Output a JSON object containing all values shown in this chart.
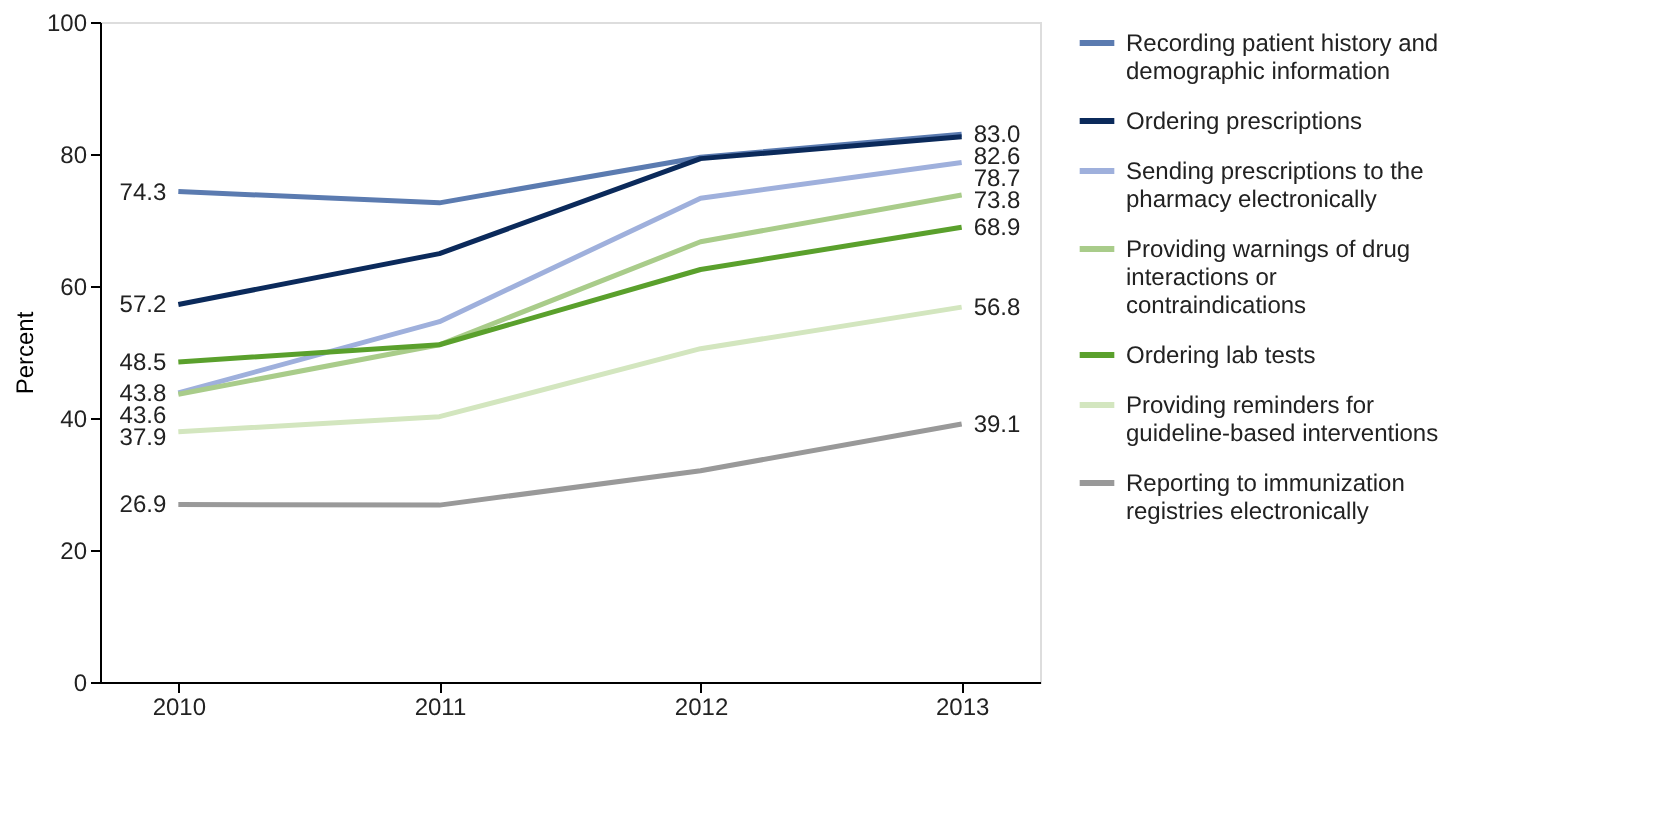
{
  "chart_data": {
    "type": "line",
    "ylabel": "Percent",
    "categories": [
      "2010",
      "2011",
      "2012",
      "2013"
    ],
    "ylim": [
      0,
      100
    ],
    "yticks": [
      0,
      20,
      40,
      60,
      80,
      100
    ],
    "grid": false,
    "legend": "right",
    "marker": "none",
    "line_style": "solid",
    "series": [
      {
        "name": "Recording patient history and demographic information",
        "color": "#5b7bb0",
        "values": [
          74.3,
          72.6,
          79.5,
          83.0
        ],
        "value_labels": [
          "74.3",
          null,
          null,
          "83.0"
        ]
      },
      {
        "name": "Ordering prescriptions",
        "color": "#0b2a5b",
        "values": [
          57.2,
          64.9,
          79.3,
          82.6
        ],
        "value_labels": [
          "57.2",
          null,
          null,
          "82.6"
        ]
      },
      {
        "name": "Sending prescriptions to the pharmacy electronically",
        "color": "#9fb0dc",
        "values": [
          43.8,
          54.6,
          73.3,
          78.7
        ],
        "value_labels": [
          "43.8",
          null,
          null,
          "78.7"
        ]
      },
      {
        "name": "Providing warnings of drug interactions or contraindications",
        "color": "#a9cc8a",
        "values": [
          43.6,
          51.1,
          66.7,
          73.8
        ],
        "value_labels": [
          "43.6",
          null,
          null,
          "73.8"
        ]
      },
      {
        "name": "Ordering lab tests",
        "color": "#5aa02c",
        "values": [
          48.5,
          51.1,
          62.5,
          68.9
        ],
        "value_labels": [
          "48.5",
          null,
          null,
          "68.9"
        ]
      },
      {
        "name": "Providing reminders for guideline-based interventions",
        "color": "#d3e6bf",
        "values": [
          37.9,
          40.2,
          50.5,
          56.8
        ],
        "value_labels": [
          "37.9",
          null,
          null,
          "56.8"
        ]
      },
      {
        "name": "Reporting to immunization registries electronically",
        "color": "#999999",
        "values": [
          26.9,
          26.8,
          32.0,
          39.1
        ],
        "value_labels": [
          "26.9",
          null,
          null,
          "39.1"
        ]
      }
    ]
  }
}
